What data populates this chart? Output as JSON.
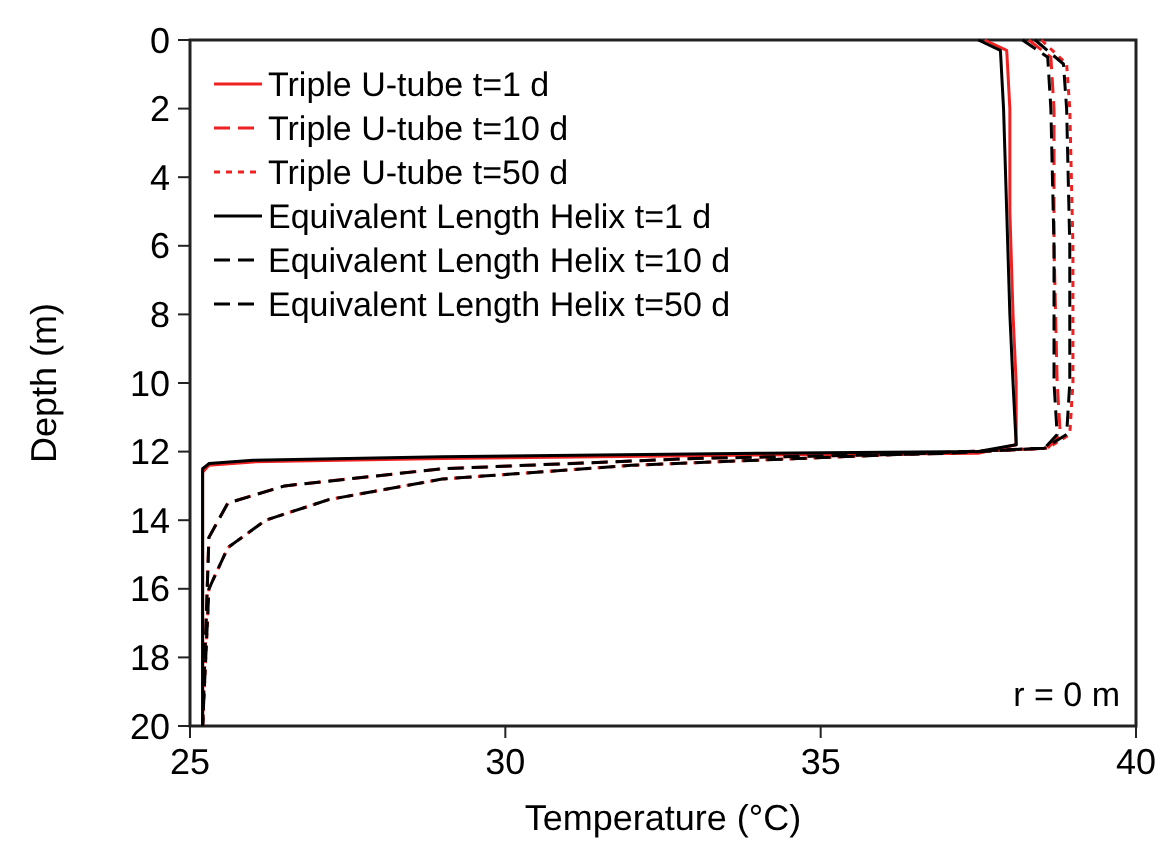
{
  "chart_data": {
    "type": "line",
    "xlabel": "Temperature (°C)",
    "ylabel": "Depth (m)",
    "xlim": [
      25,
      40
    ],
    "xticks": [
      25,
      30,
      35,
      40
    ],
    "ylim": [
      20,
      0
    ],
    "yticks": [
      0,
      2,
      4,
      6,
      8,
      10,
      12,
      14,
      16,
      18,
      20
    ],
    "grid": false,
    "legend": "top left",
    "marker": "none",
    "annotations": [
      "r = 0 m"
    ],
    "series": [
      {
        "name": "Triple U-tube t=1 d",
        "color": "#ee2222",
        "line_style": "solid",
        "x": [
          37.6,
          37.95,
          38.0,
          38.0,
          38.05,
          38.1,
          38.1,
          37.5,
          34,
          29,
          26,
          25.3,
          25.2,
          25.2
        ],
        "values": [
          0,
          0.3,
          2,
          5,
          8,
          10,
          11.8,
          12.05,
          12.1,
          12.2,
          12.3,
          12.4,
          12.6,
          20
        ]
      },
      {
        "name": "Triple U-tube t=10 d",
        "color": "#ee2222",
        "line_style": "dashed",
        "x": [
          38.3,
          38.65,
          38.7,
          38.7,
          38.75,
          38.8,
          38.6,
          37,
          33,
          29,
          26.5,
          25.6,
          25.3,
          25.2
        ],
        "values": [
          0,
          0.5,
          2,
          6,
          10,
          11.5,
          11.9,
          12.05,
          12.2,
          12.5,
          13,
          13.5,
          14.5,
          20
        ]
      },
      {
        "name": "Triple U-tube t=50 d",
        "color": "#ee2222",
        "line_style": "dotted",
        "x": [
          38.5,
          38.9,
          38.95,
          39.0,
          39.0,
          38.95,
          38.6,
          36,
          32,
          29,
          27.2,
          26.2,
          25.6,
          25.3,
          25.2
        ],
        "values": [
          0,
          0.7,
          2,
          6,
          10,
          11.5,
          11.9,
          12.1,
          12.4,
          12.8,
          13.4,
          14,
          14.8,
          16,
          20
        ]
      },
      {
        "name": "Equivalent Length Helix t=1 d",
        "color": "#000000",
        "line_style": "solid",
        "x": [
          37.5,
          37.85,
          37.9,
          37.95,
          38.0,
          38.05,
          38.1,
          37.5,
          34,
          29,
          26,
          25.3,
          25.2,
          25.2
        ],
        "values": [
          0,
          0.3,
          2,
          5,
          8,
          10,
          11.8,
          12.0,
          12.05,
          12.15,
          12.25,
          12.35,
          12.5,
          20
        ]
      },
      {
        "name": "Equivalent Length Helix t=10 d",
        "color": "#000000",
        "line_style": "dashed",
        "x": [
          38.2,
          38.6,
          38.65,
          38.7,
          38.7,
          38.75,
          38.55,
          37,
          33,
          29,
          26.5,
          25.6,
          25.3,
          25.2
        ],
        "values": [
          0,
          0.5,
          2,
          6,
          10,
          11.5,
          11.9,
          12.05,
          12.2,
          12.5,
          13,
          13.5,
          14.5,
          20
        ]
      },
      {
        "name": "Equivalent Length Helix t=50 d",
        "color": "#000000",
        "line_style": "dashed",
        "x": [
          38.4,
          38.85,
          38.9,
          38.95,
          38.95,
          38.9,
          38.55,
          36,
          32,
          29,
          27.2,
          26.2,
          25.6,
          25.3,
          25.2
        ],
        "values": [
          0,
          0.7,
          2,
          6,
          10,
          11.5,
          11.9,
          12.1,
          12.4,
          12.8,
          13.4,
          14,
          14.8,
          16,
          20
        ]
      }
    ]
  }
}
